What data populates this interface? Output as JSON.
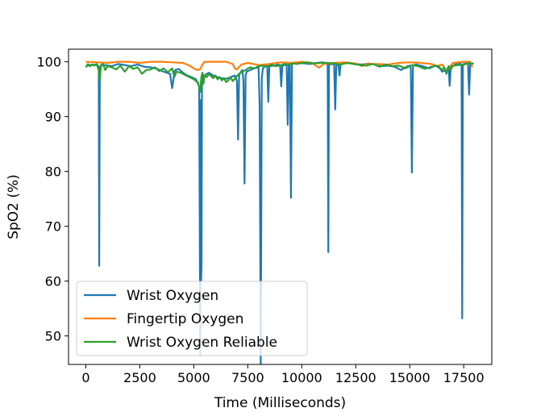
{
  "chart_data": {
    "type": "line",
    "title": "",
    "xlabel": "Time (Milliseconds)",
    "ylabel": "SpO2 (%)",
    "xlim": [
      -800,
      18800
    ],
    "ylim": [
      44.8,
      102.3
    ],
    "xticks": [
      0,
      2500,
      5000,
      7500,
      10000,
      12500,
      15000,
      17500
    ],
    "yticks": [
      50,
      60,
      70,
      80,
      90,
      100
    ],
    "grid": false,
    "legend_position": "lower-left",
    "series": [
      {
        "name": "Wrist Oxygen",
        "color": "#1f77b4",
        "x": [
          0,
          300,
          550,
          600,
          620,
          650,
          700,
          900,
          1200,
          1500,
          1800,
          2100,
          2400,
          2700,
          3000,
          3300,
          3600,
          3900,
          4000,
          4050,
          4100,
          4150,
          4300,
          4500,
          4700,
          4900,
          5100,
          5250,
          5300,
          5320,
          5340,
          5360,
          5380,
          5400,
          5430,
          5500,
          5600,
          5700,
          5900,
          6100,
          6300,
          6500,
          6700,
          6900,
          7000,
          7050,
          7100,
          7150,
          7250,
          7300,
          7350,
          7400,
          7450,
          7600,
          7800,
          8000,
          8050,
          8100,
          8150,
          8200,
          8300,
          8400,
          8450,
          8500,
          8700,
          8900,
          9000,
          9050,
          9100,
          9200,
          9300,
          9350,
          9400,
          9450,
          9500,
          9550,
          9600,
          9700,
          9900,
          10100,
          10400,
          10700,
          11000,
          11200,
          11230,
          11260,
          11400,
          11500,
          11550,
          11600,
          11700,
          11750,
          11800,
          11900,
          12200,
          12500,
          12800,
          13100,
          13400,
          13700,
          14000,
          14300,
          14600,
          14900,
          15000,
          15050,
          15100,
          15150,
          15200,
          15300,
          15600,
          15900,
          16200,
          16400,
          16500,
          16700,
          16800,
          16850,
          16900,
          17000,
          17100,
          17300,
          17400,
          17430,
          17460,
          17500,
          17600,
          17650,
          17700,
          17750,
          17800,
          17900,
          17950
        ],
        "y": [
          99.2,
          99.5,
          99.4,
          99,
          62.8,
          99,
          99.3,
          99.4,
          99.2,
          99.6,
          99.4,
          99.2,
          99.5,
          99.1,
          99,
          98.7,
          98.2,
          97.8,
          95.2,
          96.5,
          98.2,
          98.5,
          98.7,
          98,
          97.5,
          97.2,
          96.8,
          95.5,
          46.5,
          93,
          60,
          63,
          97,
          98,
          97.5,
          97.5,
          97.8,
          98,
          97.5,
          97.2,
          97,
          96.9,
          97.2,
          97.5,
          96.5,
          85.8,
          97.5,
          98,
          98.5,
          96.5,
          77.8,
          97.5,
          98.2,
          98.5,
          98.8,
          99,
          92,
          44.6,
          97,
          98.8,
          99.2,
          99.3,
          92.7,
          99.2,
          99.3,
          99.5,
          99.4,
          95.5,
          99.3,
          99.4,
          99.5,
          88.5,
          99.3,
          99.5,
          75.2,
          99.6,
          99.7,
          99.8,
          99.8,
          99.7,
          99.6,
          99.8,
          99.9,
          99.5,
          65.3,
          99.5,
          99.6,
          99.5,
          91.3,
          99.6,
          99.4,
          97.5,
          99.5,
          99.7,
          99.8,
          99.6,
          99.5,
          99.7,
          99.5,
          99.2,
          99.3,
          99.1,
          98.5,
          99.2,
          99.3,
          98.8,
          79.8,
          99.2,
          99.4,
          99.5,
          99.2,
          98.8,
          99.3,
          98.8,
          98.2,
          98.5,
          99,
          95.6,
          99,
          99.2,
          99.5,
          99.8,
          99.5,
          53.2,
          99.2,
          99.6,
          99.7,
          99.8,
          99.5,
          94,
          99.7,
          99.6,
          99.8
        ]
      },
      {
        "name": "Fingertip Oxygen",
        "color": "#ff7f0e",
        "x": [
          0,
          500,
          1000,
          1500,
          2000,
          2500,
          3000,
          3500,
          4000,
          4500,
          4800,
          5000,
          5100,
          5200,
          5300,
          5400,
          5500,
          6000,
          6500,
          6800,
          6900,
          7000,
          7200,
          7500,
          8000,
          8500,
          9000,
          9500,
          10000,
          10500,
          10800,
          11000,
          11500,
          12000,
          12500,
          12800,
          13000,
          13500,
          14000,
          14500,
          15000,
          15500,
          16000,
          16300,
          16500,
          16700,
          17000,
          17500,
          17800,
          17900
        ],
        "y": [
          100,
          99.9,
          99.8,
          100,
          100,
          99.8,
          100,
          100,
          99.9,
          99.8,
          99.3,
          98.8,
          98.6,
          98.5,
          98.7,
          99.5,
          100,
          100,
          100,
          99.6,
          98.8,
          98.6,
          99.5,
          99.8,
          99.4,
          99.6,
          99.9,
          99.8,
          100,
          99.7,
          98.9,
          99.6,
          99.8,
          99.9,
          99.7,
          99.2,
          99.6,
          99.6,
          99.5,
          99.8,
          99.9,
          99.8,
          99.6,
          99.2,
          99.5,
          98.3,
          99.8,
          100,
          100,
          99.0
        ]
      },
      {
        "name": "Wrist Oxygen Reliable",
        "color": "#2ca02c",
        "x": [
          0,
          100,
          200,
          300,
          400,
          500,
          600,
          650,
          700,
          800,
          900,
          1000,
          1200,
          1400,
          1600,
          1800,
          2000,
          2200,
          2400,
          2600,
          2800,
          3000,
          3200,
          3400,
          3600,
          3800,
          4000,
          4100,
          4200,
          4400,
          4600,
          4800,
          5000,
          5100,
          5200,
          5300,
          5350,
          5400,
          5450,
          5500,
          5600,
          5700,
          5800,
          5900,
          6000,
          6100,
          6200,
          6300,
          6400,
          6500,
          6600,
          6700,
          6800,
          6900,
          7000,
          7100,
          7200,
          7400,
          7600,
          7800,
          8000,
          8200,
          8400,
          8600,
          8800,
          9000,
          9200,
          9400,
          9600,
          9800,
          10000,
          10300,
          10600,
          10900,
          11200,
          11500,
          11800,
          12100,
          12400,
          12700,
          13000,
          13300,
          13600,
          13900,
          14200,
          14500,
          14800,
          15100,
          15400,
          15700,
          16000,
          16300,
          16500,
          16600,
          16700,
          16800,
          16900,
          17000,
          17500,
          17800,
          17900
        ],
        "y": [
          99,
          99.6,
          99.2,
          99.5,
          99.3,
          99.6,
          98.5,
          96.5,
          99.4,
          99.6,
          98.5,
          99.2,
          99,
          98.6,
          99.3,
          98.2,
          99.2,
          98.7,
          99,
          97.8,
          98.5,
          98.6,
          99,
          98.3,
          98.8,
          98.1,
          98.8,
          97.2,
          98.2,
          98,
          97.6,
          97.2,
          96.8,
          96.5,
          96.2,
          94.5,
          97.2,
          98,
          96,
          97.5,
          97.2,
          97.8,
          97.4,
          97,
          97.5,
          96.8,
          97.2,
          96.6,
          97,
          96.3,
          96.6,
          97.2,
          96.5,
          96.9,
          97.4,
          97.8,
          98.1,
          98.5,
          99,
          98.8,
          99.2,
          99.3,
          99.1,
          99.5,
          99.2,
          99.3,
          99.6,
          99.5,
          99.7,
          99.6,
          99.8,
          99.9,
          99.7,
          99.8,
          99.8,
          99.7,
          99.5,
          99.8,
          99.6,
          99.4,
          99.3,
          99.6,
          99.1,
          99.5,
          99.2,
          99.3,
          98.8,
          99.4,
          99.2,
          98.7,
          99.1,
          99.3,
          98.5,
          99,
          97.8,
          99.2,
          98.6,
          99.3,
          99.5,
          99.8,
          99.6
        ]
      }
    ]
  }
}
